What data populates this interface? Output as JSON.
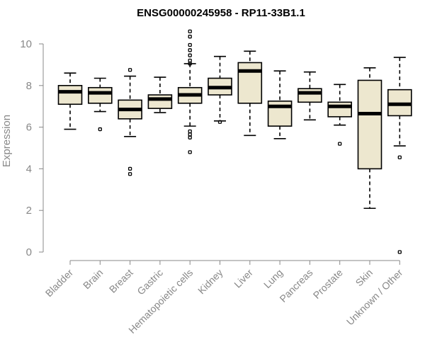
{
  "chart_data": {
    "type": "boxplot",
    "title": "ENSG00000245958 - RP11-33B1.1",
    "xlabel": "",
    "ylabel": "Expression",
    "ylim": [
      0,
      10
    ],
    "yticks": [
      0,
      2,
      4,
      6,
      8,
      10
    ],
    "fill_color": "#ede7cf",
    "categories": [
      "Bladder",
      "Brain",
      "Breast",
      "Gastric",
      "Hematopoietic cells",
      "Kidney",
      "Liver",
      "Lung",
      "Pancreas",
      "Prostate",
      "Skin",
      "Unknown / Other"
    ],
    "boxes": [
      {
        "name": "Bladder",
        "whislo": 5.9,
        "q1": 7.1,
        "med": 7.7,
        "q3": 8.0,
        "whishi": 8.6,
        "outliers": []
      },
      {
        "name": "Brain",
        "whislo": 6.75,
        "q1": 7.15,
        "med": 7.65,
        "q3": 7.9,
        "whishi": 8.35,
        "outliers": [
          5.9
        ]
      },
      {
        "name": "Breast",
        "whislo": 5.55,
        "q1": 6.4,
        "med": 6.85,
        "q3": 7.3,
        "whishi": 8.45,
        "outliers": [
          8.75,
          4.0,
          3.75
        ]
      },
      {
        "name": "Gastric",
        "whislo": 6.7,
        "q1": 6.9,
        "med": 7.35,
        "q3": 7.55,
        "whishi": 8.4,
        "outliers": []
      },
      {
        "name": "Hematopoietic cells",
        "whislo": 6.05,
        "q1": 7.15,
        "med": 7.55,
        "q3": 7.9,
        "whishi": 9.05,
        "outliers": [
          10.6,
          10.35,
          9.95,
          9.7,
          9.45,
          9.2,
          9.05,
          5.8,
          5.65,
          5.5,
          4.8
        ]
      },
      {
        "name": "Kidney",
        "whislo": 6.3,
        "q1": 7.55,
        "med": 7.9,
        "q3": 8.35,
        "whishi": 9.4,
        "outliers": [
          6.25
        ]
      },
      {
        "name": "Liver",
        "whislo": 5.6,
        "q1": 7.15,
        "med": 8.7,
        "q3": 9.1,
        "whishi": 9.65,
        "outliers": []
      },
      {
        "name": "Lung",
        "whislo": 5.45,
        "q1": 6.05,
        "med": 7.0,
        "q3": 7.25,
        "whishi": 8.7,
        "outliers": []
      },
      {
        "name": "Pancreas",
        "whislo": 6.35,
        "q1": 7.2,
        "med": 7.65,
        "q3": 7.85,
        "whishi": 8.65,
        "outliers": []
      },
      {
        "name": "Prostate",
        "whislo": 6.1,
        "q1": 6.5,
        "med": 7.0,
        "q3": 7.2,
        "whishi": 8.05,
        "outliers": [
          5.2
        ]
      },
      {
        "name": "Skin",
        "whislo": 2.1,
        "q1": 4.0,
        "med": 6.65,
        "q3": 8.25,
        "whishi": 8.85,
        "outliers": []
      },
      {
        "name": "Unknown / Other",
        "whislo": 5.1,
        "q1": 6.55,
        "med": 7.1,
        "q3": 7.8,
        "whishi": 9.35,
        "outliers": [
          4.55,
          0.0
        ]
      }
    ]
  }
}
